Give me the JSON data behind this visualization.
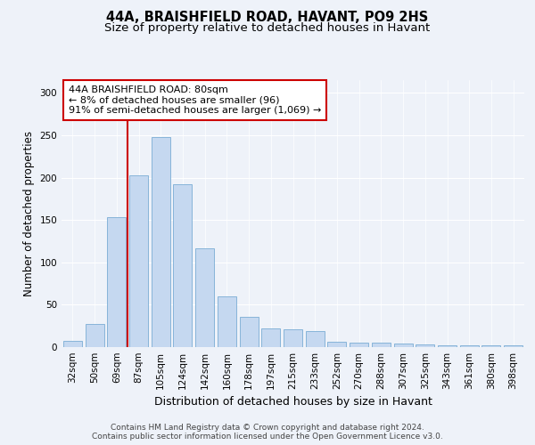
{
  "title_line1": "44A, BRAISHFIELD ROAD, HAVANT, PO9 2HS",
  "title_line2": "Size of property relative to detached houses in Havant",
  "xlabel": "Distribution of detached houses by size in Havant",
  "ylabel": "Number of detached properties",
  "categories": [
    "32sqm",
    "50sqm",
    "69sqm",
    "87sqm",
    "105sqm",
    "124sqm",
    "142sqm",
    "160sqm",
    "178sqm",
    "197sqm",
    "215sqm",
    "233sqm",
    "252sqm",
    "270sqm",
    "288sqm",
    "307sqm",
    "325sqm",
    "343sqm",
    "361sqm",
    "380sqm",
    "398sqm"
  ],
  "values": [
    7,
    27,
    153,
    203,
    248,
    192,
    117,
    60,
    36,
    22,
    21,
    19,
    6,
    5,
    5,
    4,
    3,
    2,
    2,
    2,
    2
  ],
  "bar_color": "#c5d8f0",
  "bar_edge_color": "#7aadd4",
  "property_line_bin": 2,
  "annotation_text": "44A BRAISHFIELD ROAD: 80sqm\n← 8% of detached houses are smaller (96)\n91% of semi-detached houses are larger (1,069) →",
  "annotation_box_color": "#ffffff",
  "annotation_box_edge_color": "#cc0000",
  "vertical_line_color": "#cc0000",
  "ylim": [
    0,
    315
  ],
  "yticks": [
    0,
    50,
    100,
    150,
    200,
    250,
    300
  ],
  "background_color": "#eef2f9",
  "footer_text": "Contains HM Land Registry data © Crown copyright and database right 2024.\nContains public sector information licensed under the Open Government Licence v3.0.",
  "title_fontsize": 10.5,
  "subtitle_fontsize": 9.5,
  "tick_fontsize": 7.5,
  "annotation_fontsize": 8,
  "ylabel_fontsize": 8.5,
  "xlabel_fontsize": 9
}
